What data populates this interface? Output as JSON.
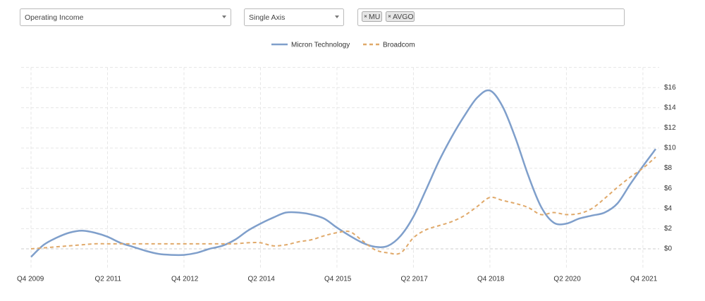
{
  "controls": {
    "metric": "Operating Income",
    "axis_mode": "Single Axis",
    "tickers": [
      "MU",
      "AVGO"
    ]
  },
  "chart_data": {
    "type": "line",
    "categories": [
      "Q4 2009",
      null,
      null,
      null,
      null,
      null,
      "Q2 2011",
      null,
      null,
      null,
      null,
      null,
      "Q4 2012",
      null,
      null,
      null,
      null,
      null,
      "Q2 2014",
      null,
      null,
      null,
      null,
      null,
      "Q4 2015",
      null,
      null,
      null,
      null,
      null,
      "Q2 2017",
      null,
      null,
      null,
      null,
      null,
      "Q4 2018",
      null,
      null,
      null,
      null,
      null,
      "Q2 2020",
      null,
      null,
      null,
      null,
      null,
      "Q4 2021",
      null
    ],
    "series": [
      {
        "name": "Micron Technology",
        "color": "#7f9fcb",
        "dashed": false,
        "values": [
          -0.8,
          0.4,
          1.1,
          1.6,
          1.8,
          1.6,
          1.2,
          0.6,
          0.2,
          -0.2,
          -0.5,
          -0.6,
          -0.6,
          -0.4,
          0.0,
          0.3,
          0.9,
          1.8,
          2.5,
          3.1,
          3.6,
          3.6,
          3.4,
          3.0,
          2.1,
          1.3,
          0.6,
          0.2,
          0.3,
          1.3,
          3.2,
          5.9,
          8.7,
          11.1,
          13.2,
          15.0,
          15.7,
          14.1,
          11.0,
          7.3,
          4.2,
          2.6,
          2.5,
          3.0,
          3.3,
          3.6,
          4.5,
          6.4,
          8.2,
          9.9
        ]
      },
      {
        "name": "Broadcom",
        "color": "#e0a96a",
        "dashed": true,
        "values": [
          0.0,
          0.1,
          0.2,
          0.3,
          0.4,
          0.5,
          0.5,
          0.5,
          0.5,
          0.5,
          0.5,
          0.5,
          0.5,
          0.5,
          0.5,
          0.5,
          0.5,
          0.6,
          0.6,
          0.3,
          0.4,
          0.7,
          0.9,
          1.3,
          1.6,
          1.7,
          0.8,
          -0.1,
          -0.4,
          -0.4,
          1.1,
          1.9,
          2.3,
          2.7,
          3.3,
          4.2,
          5.1,
          4.8,
          4.5,
          4.1,
          3.4,
          3.6,
          3.4,
          3.5,
          4.0,
          5.0,
          6.1,
          7.1,
          8.0,
          9.1
        ]
      }
    ],
    "ylim": [
      -2,
      18
    ],
    "yticks": [
      {
        "value": 0,
        "label": "$0"
      },
      {
        "value": 2,
        "label": "$2"
      },
      {
        "value": 4,
        "label": "$4"
      },
      {
        "value": 6,
        "label": "$6"
      },
      {
        "value": 8,
        "label": "$8"
      },
      {
        "value": 10,
        "label": "$10"
      },
      {
        "value": 12,
        "label": "$12"
      },
      {
        "value": 14,
        "label": "$14"
      },
      {
        "value": 16,
        "label": "$16"
      }
    ],
    "grid": true,
    "legend": "top"
  }
}
